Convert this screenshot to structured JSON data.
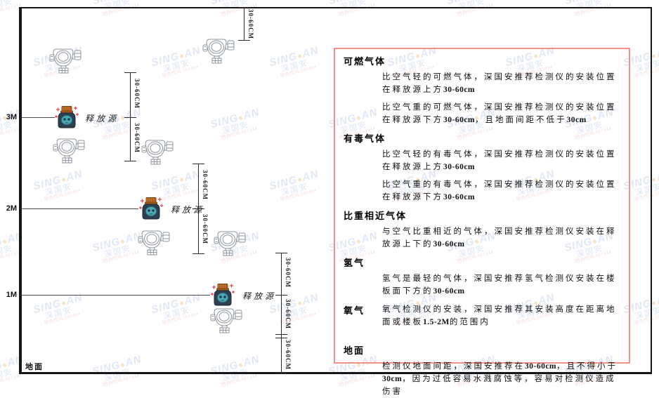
{
  "diagram": {
    "height_labels": [
      "3M",
      "2M",
      "1M"
    ],
    "ground_label": "地面",
    "release_source_label": "释放源",
    "dimension_label": "30-60CM"
  },
  "panel": {
    "sections": [
      {
        "heading": "可燃气体",
        "paras": [
          [
            {
              "t": "比空气轻的可燃气体，深国安推荐检测仪的安装位置在释放源上方",
              "b": false
            },
            {
              "t": "30-60cm",
              "b": true
            }
          ],
          [
            {
              "t": "比空气重的可燃气体，深国安推荐检测仪的安装位置在释放源下方",
              "b": false
            },
            {
              "t": "30-60cm",
              "b": true
            },
            {
              "t": "，且地面间距不低于",
              "b": false
            },
            {
              "t": "30cm",
              "b": true
            }
          ]
        ]
      },
      {
        "heading": "有毒气体",
        "paras": [
          [
            {
              "t": "比空气轻的有毒气体，深国安推荐检测仪的安装位置在释放源上方",
              "b": false
            },
            {
              "t": "30-60cm",
              "b": true
            }
          ],
          [
            {
              "t": "比空气重的有毒气体，深国安推荐检测仪的安装位置在释放源下方",
              "b": false
            },
            {
              "t": "30-60cm",
              "b": true
            }
          ]
        ]
      },
      {
        "heading": "比重相近气体",
        "paras": [
          [
            {
              "t": "与空气比重相近的气体，深国安推荐检测仪安装在释放源上下的",
              "b": false
            },
            {
              "t": "30-60cm",
              "b": true
            }
          ]
        ]
      },
      {
        "heading": "氢气",
        "paras": [
          [
            {
              "t": "氢气是最轻的气体，深国安推荐氢气检测仪安装在楼板面下方的",
              "b": false
            },
            {
              "t": "30-60cm",
              "b": true
            }
          ]
        ]
      },
      {
        "heading": "氧气",
        "paras": [
          [
            {
              "t": "氧气检测仪的安装，深国安推荐其安装高度在距离地面或楼板",
              "b": false
            },
            {
              "t": "1.5-2M",
              "b": true
            },
            {
              "t": "的范围内",
              "b": false
            }
          ]
        ]
      },
      {
        "heading": "地面",
        "paras": [
          [
            {
              "t": "检测仪地面间距，深国安推荐在",
              "b": false
            },
            {
              "t": "30-60cm",
              "b": true
            },
            {
              "t": "，且不得小于",
              "b": false
            },
            {
              "t": "30cm",
              "b": true
            },
            {
              "t": "，因为过低容易水溅腐蚀等，容易对检测仪造成伤害",
              "b": false
            }
          ]
        ]
      }
    ]
  },
  "watermark": {
    "brand_left": "SING",
    "brand_dot": "●",
    "brand_right": "AN",
    "company": "深国安",
    "code_line": "防伪代码:661434"
  },
  "colors": {
    "panel_border": "#f2908c",
    "frame": "#161616",
    "watermark_blue": "#ccd4ee",
    "watermark_orange": "#f6c98f",
    "watermark_red": "#edbcbc",
    "source_body": "#2e3f52",
    "source_cap": "#c9752c",
    "source_face": "#4aa9b6",
    "sparkle_red": "#e04545"
  }
}
